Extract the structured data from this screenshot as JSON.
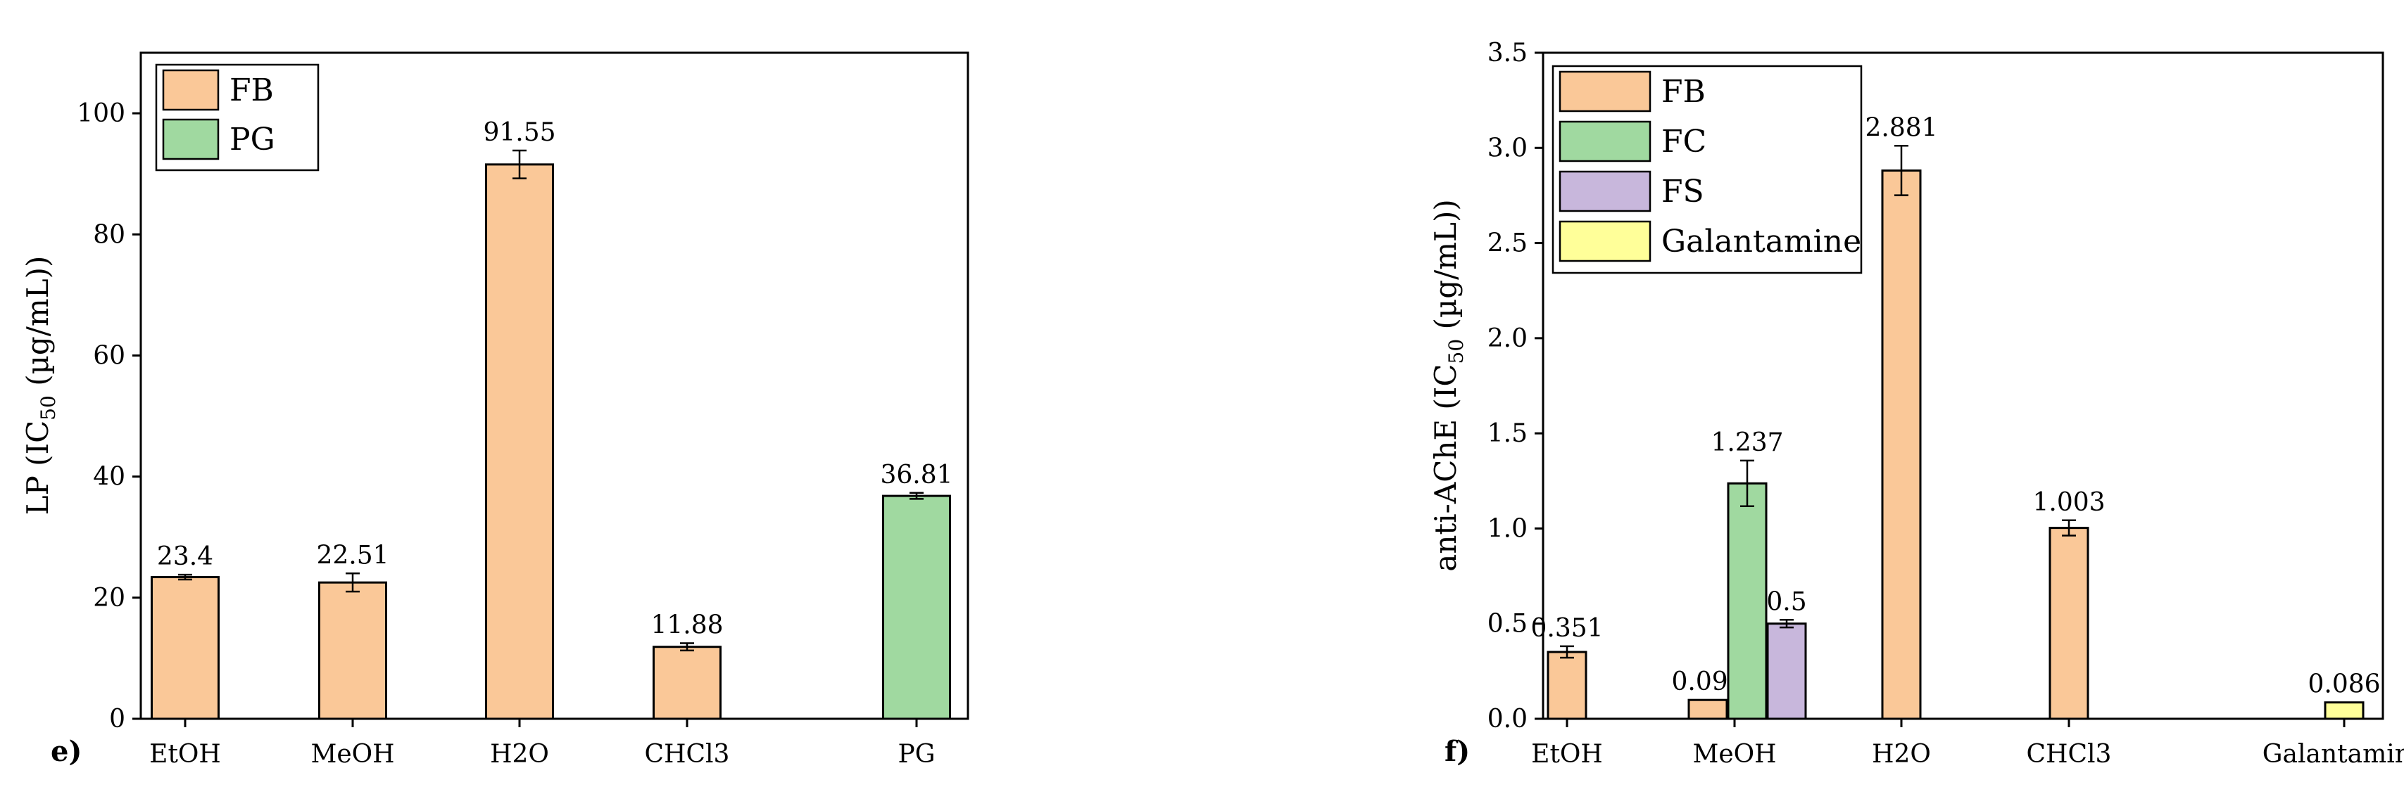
{
  "chart_data": [
    {
      "panel_label": "e)",
      "type": "bar",
      "ylabel": {
        "main": "LP (IC",
        "sub": "50",
        "tail": " (µg/mL))"
      },
      "ylim": [
        0,
        110
      ],
      "yticks": [
        0,
        20,
        40,
        60,
        80,
        100
      ],
      "legend_position": "top-left",
      "categories": [
        "EtOH",
        "MeOH",
        "H2O",
        "CHCl3",
        "PG"
      ],
      "series": [
        {
          "name": "FB",
          "color": "#FAC898",
          "values": [
            23.4,
            22.51,
            91.55,
            11.88,
            null
          ],
          "errors": [
            0.4,
            1.5,
            2.3,
            0.6,
            null
          ],
          "labels": [
            "23.4",
            "22.51",
            "91.55",
            "11.88",
            null
          ]
        },
        {
          "name": "PG",
          "color": "#A0D9A0",
          "values": [
            null,
            null,
            null,
            null,
            36.81
          ],
          "errors": [
            null,
            null,
            null,
            null,
            0.5
          ],
          "labels": [
            null,
            null,
            null,
            null,
            "36.81"
          ]
        }
      ]
    },
    {
      "panel_label": "f)",
      "type": "bar",
      "ylabel": {
        "main": "anti-AChE (IC",
        "sub": "50",
        "tail": " (µg/mL))"
      },
      "ylim": [
        0,
        3.5
      ],
      "yticks": [
        "0.0",
        "0.5",
        "1.0",
        "1.5",
        "2.0",
        "2.5",
        "3.0",
        "3.5"
      ],
      "legend_position": "top-left",
      "categories": [
        "EtOH",
        "MeOH",
        "H2O",
        "CHCl3",
        "Galantamine"
      ],
      "series": [
        {
          "name": "FB",
          "color": "#FAC898",
          "values": [
            0.351,
            0.099,
            2.881,
            1.003,
            null
          ],
          "errors": [
            0.03,
            0.0,
            0.13,
            0.04,
            null
          ],
          "labels": [
            "0.351",
            "0.099",
            "2.881",
            "1.003",
            null
          ]
        },
        {
          "name": "FC",
          "color": "#A0D9A0",
          "values": [
            null,
            1.237,
            null,
            null,
            null
          ],
          "errors": [
            null,
            0.12,
            null,
            null,
            null
          ],
          "labels": [
            null,
            "1.237",
            null,
            null,
            null
          ]
        },
        {
          "name": "FS",
          "color": "#C8B7DC",
          "values": [
            null,
            0.5,
            null,
            null,
            null
          ],
          "errors": [
            null,
            0.02,
            null,
            null,
            null
          ],
          "labels": [
            null,
            "0.5",
            null,
            null,
            null
          ]
        },
        {
          "name": "Galantamine",
          "color": "#FFFF99",
          "values": [
            null,
            null,
            null,
            null,
            0.086
          ],
          "errors": [
            null,
            null,
            null,
            null,
            null
          ],
          "labels": [
            null,
            null,
            null,
            null,
            "0.086"
          ]
        }
      ]
    }
  ]
}
